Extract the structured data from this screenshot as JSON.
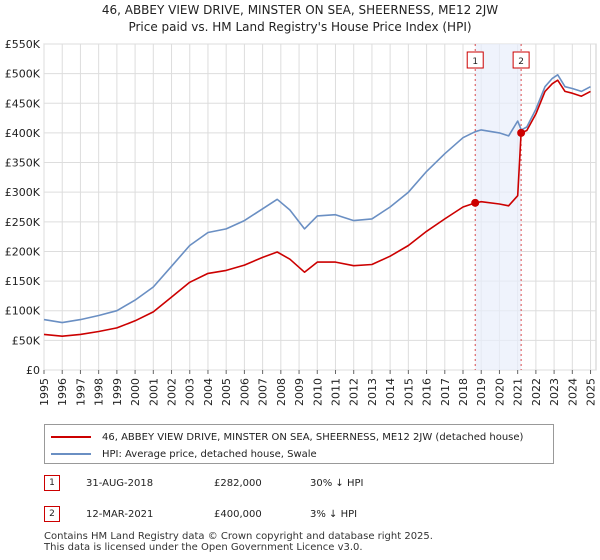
{
  "chart_data": {
    "type": "line",
    "title": "46, ABBEY VIEW DRIVE, MINSTER ON SEA, SHEERNESS, ME12 2JW",
    "subtitle": "Price paid vs. HM Land Registry's House Price Index (HPI)",
    "xlabel": "",
    "ylabel": "",
    "xlim": [
      1995,
      2025.3
    ],
    "ylim": [
      0,
      550000
    ],
    "grid": true,
    "y_ticks": [
      {
        "value": 0,
        "label": "£0"
      },
      {
        "value": 50000,
        "label": "£50K"
      },
      {
        "value": 100000,
        "label": "£100K"
      },
      {
        "value": 150000,
        "label": "£150K"
      },
      {
        "value": 200000,
        "label": "£200K"
      },
      {
        "value": 250000,
        "label": "£250K"
      },
      {
        "value": 300000,
        "label": "£300K"
      },
      {
        "value": 350000,
        "label": "£350K"
      },
      {
        "value": 400000,
        "label": "£400K"
      },
      {
        "value": 450000,
        "label": "£450K"
      },
      {
        "value": 500000,
        "label": "£500K"
      },
      {
        "value": 550000,
        "label": "£550K"
      }
    ],
    "x_ticks": [
      "1995",
      "1996",
      "1997",
      "1998",
      "1999",
      "2000",
      "2001",
      "2002",
      "2003",
      "2004",
      "2005",
      "2006",
      "2007",
      "2008",
      "2009",
      "2010",
      "2011",
      "2012",
      "2013",
      "2014",
      "2015",
      "2016",
      "2017",
      "2018",
      "2019",
      "2020",
      "2021",
      "2022",
      "2023",
      "2024",
      "2025"
    ],
    "series": [
      {
        "name": "HPI: Average price, detached house, Swale",
        "color": "#6a8fc3",
        "x": [
          1995,
          1996,
          1997,
          1998,
          1999,
          2000,
          2001,
          2002,
          2003,
          2004,
          2005,
          2006,
          2007,
          2007.8,
          2008.5,
          2009.3,
          2010,
          2011,
          2012,
          2013,
          2014,
          2015,
          2016,
          2017,
          2018,
          2018.67,
          2019,
          2020,
          2020.5,
          2021,
          2021.2,
          2021.5,
          2022,
          2022.5,
          2022.9,
          2023.2,
          2023.6,
          2024,
          2024.5,
          2025
        ],
        "y": [
          85000,
          80000,
          85000,
          92000,
          100000,
          118000,
          140000,
          175000,
          210000,
          232000,
          238000,
          252000,
          272000,
          288000,
          270000,
          238000,
          260000,
          262000,
          252000,
          255000,
          275000,
          300000,
          335000,
          365000,
          392000,
          402000,
          405000,
          400000,
          395000,
          420000,
          405000,
          410000,
          440000,
          478000,
          492000,
          498000,
          478000,
          475000,
          470000,
          478000
        ]
      },
      {
        "name": "46, ABBEY VIEW DRIVE, MINSTER ON SEA, SHEERNESS, ME12 2JW (detached house)",
        "color": "#cc0000",
        "x": [
          1995,
          1996,
          1997,
          1998,
          1999,
          2000,
          2001,
          2002,
          2003,
          2004,
          2005,
          2006,
          2007,
          2007.8,
          2008.5,
          2009.3,
          2010,
          2011,
          2012,
          2013,
          2014,
          2015,
          2016,
          2017,
          2018,
          2018.67,
          2019,
          2020,
          2020.5,
          2021,
          2021.19,
          2021.5,
          2022,
          2022.5,
          2022.9,
          2023.2,
          2023.6,
          2024,
          2024.5,
          2025
        ],
        "y": [
          60000,
          57000,
          60000,
          65000,
          71000,
          83000,
          98000,
          123000,
          148000,
          163000,
          168000,
          177000,
          190000,
          199000,
          187000,
          165000,
          182000,
          182000,
          176000,
          178000,
          192000,
          210000,
          234000,
          255000,
          275000,
          282000,
          284000,
          280000,
          277000,
          294000,
          400000,
          404000,
          432000,
          470000,
          483000,
          489000,
          470000,
          467000,
          462000,
          470000
        ]
      }
    ],
    "transactions": [
      {
        "id": "1",
        "x": 2018.67,
        "y": 282000
      },
      {
        "id": "2",
        "x": 2021.19,
        "y": 400000
      }
    ],
    "shaded_range": [
      2018.67,
      2021.19
    ],
    "legend": [
      {
        "label": "46, ABBEY VIEW DRIVE, MINSTER ON SEA, SHEERNESS, ME12 2JW (detached house)",
        "color": "#cc0000"
      },
      {
        "label": "HPI: Average price, detached house, Swale",
        "color": "#6a8fc3"
      }
    ]
  },
  "transactions_table": [
    {
      "num": "1",
      "date": "31-AUG-2018",
      "price": "£282,000",
      "delta": "30% ↓ HPI"
    },
    {
      "num": "2",
      "date": "12-MAR-2021",
      "price": "£400,000",
      "delta": "3% ↓ HPI"
    }
  ],
  "footer": {
    "line1": "Contains HM Land Registry data © Crown copyright and database right 2025.",
    "line2": "This data is licensed under the Open Government Licence v3.0."
  }
}
